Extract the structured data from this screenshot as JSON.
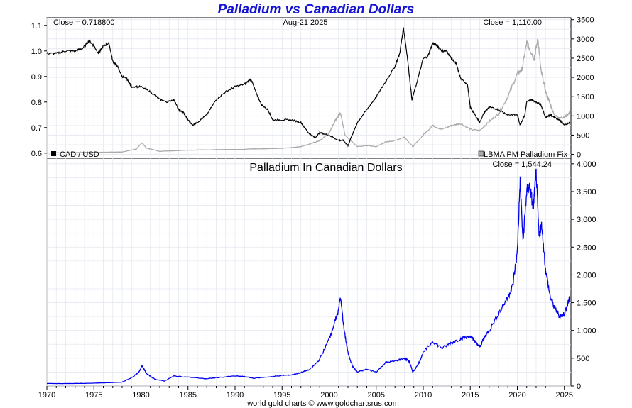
{
  "chart_data": [
    {
      "type": "line",
      "title": "Palladium vs Canadian Dollars",
      "date_label": "Aug-21  2025",
      "left_close": "Close = 0.718800",
      "right_close": "Close = 1,110.00",
      "x_range": [
        1970,
        2025.7
      ],
      "left_axis": {
        "range": [
          0.58,
          1.13
        ],
        "ticks": [
          "0.6",
          "0.7",
          "0.8",
          "0.9",
          "1.0",
          "1.1"
        ]
      },
      "right_axis": {
        "range": [
          -100,
          3550
        ],
        "ticks": [
          "0",
          "500",
          "1000",
          "1500",
          "2000",
          "2500",
          "3000",
          "3500"
        ]
      },
      "grid": true,
      "legend_placement": "bottom",
      "series": [
        {
          "name": "CAD / USD",
          "axis": "left",
          "color": "#000000",
          "x": [
            1970.0,
            1971.0,
            1972.0,
            1973.0,
            1973.8,
            1974.5,
            1975.0,
            1975.5,
            1976.0,
            1976.6,
            1977.0,
            1977.5,
            1978.0,
            1978.5,
            1979.0,
            1980.0,
            1981.0,
            1982.0,
            1982.8,
            1983.5,
            1984.0,
            1984.5,
            1985.0,
            1985.5,
            1986.0,
            1987.0,
            1988.0,
            1989.0,
            1990.0,
            1991.0,
            1991.7,
            1992.2,
            1992.8,
            1993.5,
            1994.0,
            1995.0,
            1996.0,
            1997.0,
            1997.8,
            1998.5,
            1999.0,
            2000.0,
            2001.0,
            2001.5,
            2002.0,
            2003.0,
            2004.0,
            2005.0,
            2006.0,
            2007.0,
            2007.5,
            2007.9,
            2008.3,
            2008.8,
            2009.2,
            2010.0,
            2010.5,
            2011.0,
            2011.5,
            2012.0,
            2012.5,
            2013.0,
            2013.5,
            2014.0,
            2014.7,
            2015.0,
            2015.5,
            2016.0,
            2016.5,
            2017.0,
            2018.0,
            2019.0,
            2020.0,
            2020.3,
            2020.8,
            2021.0,
            2021.5,
            2022.0,
            2022.5,
            2023.0,
            2023.5,
            2024.0,
            2024.5,
            2025.0,
            2025.6
          ],
          "y": [
            0.99,
            0.99,
            1.0,
            1.0,
            1.01,
            1.04,
            1.02,
            0.99,
            1.02,
            1.03,
            0.96,
            0.94,
            0.9,
            0.89,
            0.86,
            0.86,
            0.84,
            0.81,
            0.8,
            0.81,
            0.77,
            0.76,
            0.73,
            0.71,
            0.72,
            0.75,
            0.81,
            0.84,
            0.86,
            0.87,
            0.89,
            0.84,
            0.79,
            0.77,
            0.73,
            0.73,
            0.73,
            0.72,
            0.68,
            0.66,
            0.68,
            0.67,
            0.65,
            0.65,
            0.63,
            0.72,
            0.77,
            0.82,
            0.88,
            0.94,
            0.99,
            1.09,
            0.98,
            0.81,
            0.86,
            0.97,
            0.98,
            1.03,
            1.02,
            1.0,
            1.0,
            0.97,
            0.95,
            0.89,
            0.87,
            0.78,
            0.75,
            0.72,
            0.76,
            0.78,
            0.77,
            0.75,
            0.75,
            0.71,
            0.75,
            0.8,
            0.81,
            0.8,
            0.79,
            0.74,
            0.75,
            0.74,
            0.73,
            0.71,
            0.72
          ]
        },
        {
          "name": "LBMA PM Palladium Fix",
          "axis": "right",
          "color": "#aaaaaa",
          "x": [
            1970.0,
            1975.0,
            1978.0,
            1979.5,
            1980.1,
            1980.6,
            1982.0,
            1985.0,
            1990.0,
            1995.0,
            1997.0,
            1998.0,
            1999.0,
            2000.0,
            2000.7,
            2001.2,
            2001.7,
            2002.5,
            2003.0,
            2004.0,
            2005.0,
            2006.0,
            2007.0,
            2008.0,
            2008.9,
            2010.0,
            2011.0,
            2012.0,
            2013.0,
            2014.0,
            2015.0,
            2016.0,
            2017.0,
            2018.0,
            2019.0,
            2020.0,
            2020.5,
            2021.0,
            2021.3,
            2021.8,
            2022.2,
            2022.5,
            2023.0,
            2023.5,
            2024.0,
            2025.0,
            2025.6
          ],
          "y": [
            36,
            55,
            62,
            140,
            300,
            160,
            80,
            110,
            130,
            160,
            200,
            280,
            350,
            550,
            900,
            1080,
            500,
            320,
            200,
            230,
            200,
            320,
            360,
            450,
            200,
            500,
            750,
            650,
            750,
            800,
            650,
            620,
            850,
            1050,
            1500,
            2100,
            2200,
            2900,
            2750,
            2500,
            3000,
            2200,
            1650,
            1300,
            1000,
            950,
            1110
          ]
        }
      ]
    },
    {
      "type": "line",
      "title": "Palladium In Canadian Dollars",
      "right_close": "Close = 1,544.24",
      "x_range": [
        1970,
        2025.7
      ],
      "y_axis": {
        "range": [
          0,
          4100
        ],
        "ticks": [
          "0",
          "500",
          "1,000",
          "1,500",
          "2,000",
          "2,500",
          "3,000",
          "3,500",
          "4,000"
        ]
      },
      "x_ticks": [
        "1970",
        "1975",
        "1980",
        "1985",
        "1990",
        "1995",
        "2000",
        "2005",
        "2010",
        "2015",
        "2020",
        "2025"
      ],
      "grid": true,
      "series": [
        {
          "name": "",
          "color": "#0000ee",
          "x": [
            1970.0,
            1973.0,
            1976.0,
            1978.0,
            1979.0,
            1979.8,
            1980.1,
            1980.6,
            1981.5,
            1982.5,
            1983.5,
            1985.0,
            1987.0,
            1988.0,
            1990.0,
            1991.0,
            1992.0,
            1994.0,
            1995.0,
            1996.0,
            1997.0,
            1998.0,
            1999.0,
            2000.0,
            2000.5,
            2000.9,
            2001.2,
            2001.6,
            2002.0,
            2002.5,
            2003.0,
            2004.0,
            2005.0,
            2006.0,
            2007.0,
            2008.0,
            2008.5,
            2008.9,
            2009.5,
            2010.0,
            2011.0,
            2012.0,
            2013.0,
            2014.0,
            2015.0,
            2015.5,
            2016.0,
            2016.5,
            2017.0,
            2018.0,
            2019.0,
            2019.5,
            2020.0,
            2020.3,
            2020.6,
            2021.0,
            2021.3,
            2021.7,
            2022.0,
            2022.3,
            2022.6,
            2023.0,
            2023.5,
            2024.0,
            2024.5,
            2025.0,
            2025.4,
            2025.6
          ],
          "y": [
            45,
            45,
            55,
            70,
            150,
            250,
            370,
            220,
            120,
            90,
            180,
            160,
            130,
            150,
            180,
            170,
            140,
            170,
            190,
            200,
            240,
            300,
            480,
            850,
            1100,
            1300,
            1600,
            1000,
            600,
            350,
            250,
            300,
            250,
            420,
            450,
            500,
            450,
            250,
            400,
            600,
            800,
            680,
            780,
            850,
            900,
            800,
            700,
            880,
            1000,
            1300,
            1600,
            1800,
            2400,
            3700,
            2600,
            3500,
            3600,
            3200,
            3850,
            2700,
            2900,
            2100,
            1600,
            1400,
            1250,
            1300,
            1500,
            1600
          ]
        }
      ]
    }
  ],
  "legend": {
    "cad_usd": "CAD / USD",
    "palladium_fix": "LBMA PM Palladium Fix"
  },
  "footer": {
    "credit": "world gold charts © www.goldchartsrus.com"
  }
}
